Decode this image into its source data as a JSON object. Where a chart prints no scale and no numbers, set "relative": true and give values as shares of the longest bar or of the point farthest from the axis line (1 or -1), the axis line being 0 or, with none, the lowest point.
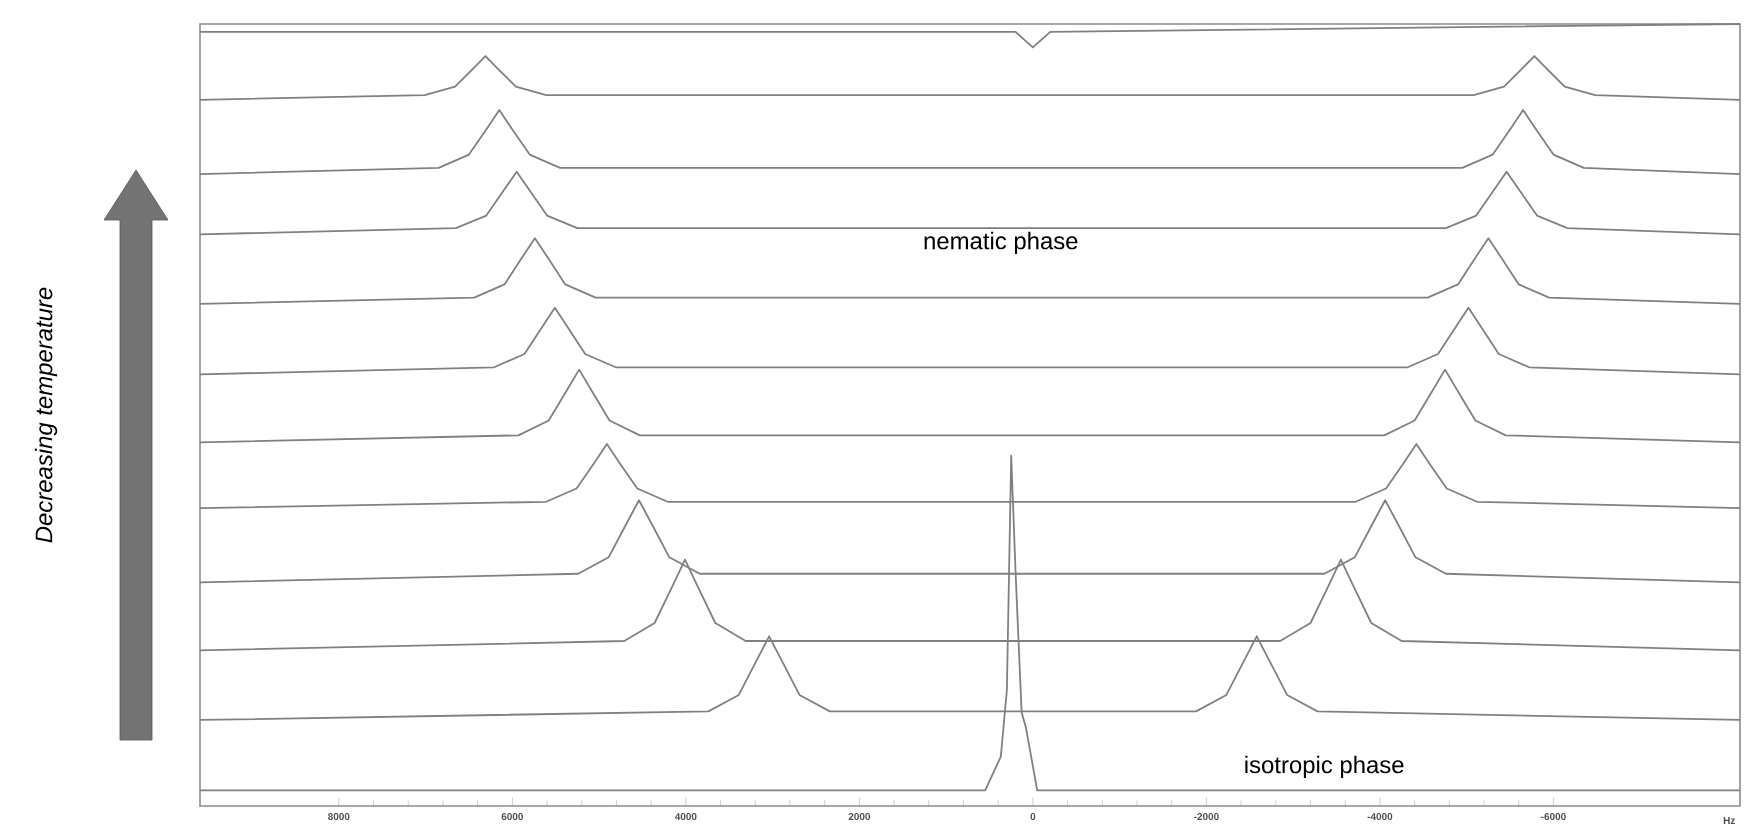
{
  "chart_data": {
    "type": "line",
    "relative": true,
    "xlim": [
      9600,
      -8150
    ],
    "xlabel": "Hz",
    "xticks": [
      8000,
      6000,
      4000,
      2000,
      0,
      -2000,
      -4000,
      -6000
    ],
    "annotations": [
      "nematic phase",
      "isotropic phase",
      "Decreasing temperature"
    ],
    "series": [
      {
        "color": "#808080",
        "x": [
          9600,
          2000,
          200,
          0,
          -200,
          -8150
        ],
        "values": [
          0.99,
          0.99,
          0.99,
          0.97,
          0.99,
          1.0
        ]
      },
      {
        "color": "#808080",
        "x": [
          9600,
          7010,
          6660,
          6460,
          6310,
          6160,
          5960,
          5610,
          -5080,
          -5430,
          -5630,
          -5780,
          -5930,
          -6130,
          -6480,
          -8150
        ],
        "values": [
          0.903,
          0.909,
          0.92,
          0.942,
          0.959,
          0.942,
          0.92,
          0.909,
          0.909,
          0.92,
          0.942,
          0.959,
          0.942,
          0.92,
          0.909,
          0.903
        ]
      },
      {
        "color": "#808080",
        "x": [
          9600,
          6850,
          6500,
          6300,
          6150,
          6000,
          5800,
          5450,
          -4950,
          -5300,
          -5500,
          -5650,
          -5800,
          -6000,
          -6350,
          -8150
        ],
        "values": [
          0.808,
          0.816,
          0.833,
          0.865,
          0.89,
          0.865,
          0.833,
          0.816,
          0.816,
          0.833,
          0.865,
          0.89,
          0.865,
          0.833,
          0.816,
          0.808
        ]
      },
      {
        "color": "#808080",
        "x": [
          9600,
          6650,
          6300,
          6100,
          5950,
          5800,
          5600,
          5250,
          -4760,
          -5110,
          -5310,
          -5460,
          -5610,
          -5810,
          -6160,
          -8150
        ],
        "values": [
          0.731,
          0.739,
          0.755,
          0.787,
          0.811,
          0.787,
          0.755,
          0.739,
          0.739,
          0.755,
          0.787,
          0.811,
          0.787,
          0.755,
          0.739,
          0.731
        ]
      },
      {
        "color": "#808080",
        "x": [
          9600,
          6440,
          6090,
          5890,
          5740,
          5590,
          5390,
          5040,
          -4550,
          -4900,
          -5100,
          -5250,
          -5400,
          -5600,
          -5950,
          -8150
        ],
        "values": [
          0.642,
          0.65,
          0.667,
          0.701,
          0.726,
          0.701,
          0.667,
          0.65,
          0.65,
          0.667,
          0.701,
          0.726,
          0.701,
          0.667,
          0.65,
          0.642
        ]
      },
      {
        "color": "#808080",
        "x": [
          9600,
          6210,
          5860,
          5660,
          5510,
          5360,
          5160,
          4810,
          -4320,
          -4670,
          -4870,
          -5020,
          -5170,
          -5370,
          -5720,
          -8150
        ],
        "values": [
          0.552,
          0.561,
          0.578,
          0.612,
          0.637,
          0.612,
          0.578,
          0.561,
          0.561,
          0.578,
          0.612,
          0.637,
          0.612,
          0.578,
          0.561,
          0.552
        ]
      },
      {
        "color": "#808080",
        "x": [
          9600,
          5930,
          5580,
          5380,
          5230,
          5080,
          4880,
          4530,
          -4050,
          -4400,
          -4600,
          -4750,
          -4900,
          -5100,
          -5450,
          -8150
        ],
        "values": [
          0.465,
          0.474,
          0.493,
          0.53,
          0.558,
          0.53,
          0.493,
          0.474,
          0.474,
          0.493,
          0.53,
          0.558,
          0.53,
          0.493,
          0.474,
          0.465
        ]
      },
      {
        "color": "#808080",
        "x": [
          9600,
          5610,
          5260,
          5060,
          4910,
          4760,
          4560,
          4210,
          -3720,
          -4070,
          -4270,
          -4420,
          -4570,
          -4770,
          -5120,
          -8150
        ],
        "values": [
          0.381,
          0.389,
          0.406,
          0.438,
          0.463,
          0.438,
          0.406,
          0.389,
          0.389,
          0.406,
          0.438,
          0.463,
          0.438,
          0.406,
          0.389,
          0.381
        ]
      },
      {
        "color": "#808080",
        "x": [
          9600,
          5240,
          4890,
          4690,
          4540,
          4390,
          4190,
          3840,
          -3360,
          -3710,
          -3910,
          -4060,
          -4210,
          -4410,
          -4760,
          -8150
        ],
        "values": [
          0.286,
          0.297,
          0.318,
          0.36,
          0.391,
          0.36,
          0.318,
          0.297,
          0.297,
          0.318,
          0.36,
          0.391,
          0.36,
          0.318,
          0.297,
          0.286
        ]
      },
      {
        "color": "#808080",
        "x": [
          9600,
          4710,
          4360,
          4160,
          4010,
          3860,
          3660,
          3310,
          -2850,
          -3200,
          -3400,
          -3550,
          -3700,
          -3900,
          -4250,
          -8150
        ],
        "values": [
          0.199,
          0.211,
          0.234,
          0.28,
          0.315,
          0.28,
          0.234,
          0.211,
          0.211,
          0.234,
          0.28,
          0.315,
          0.28,
          0.234,
          0.211,
          0.199
        ]
      },
      {
        "color": "#808080",
        "x": [
          9600,
          3740,
          3390,
          3190,
          3040,
          2890,
          2690,
          2340,
          -1880,
          -2230,
          -2430,
          -2580,
          -2730,
          -2930,
          -3280,
          -8150
        ],
        "values": [
          0.11,
          0.121,
          0.142,
          0.185,
          0.217,
          0.185,
          0.142,
          0.121,
          0.121,
          0.142,
          0.185,
          0.217,
          0.185,
          0.142,
          0.121,
          0.11
        ]
      },
      {
        "color": "#808080",
        "x": [
          9600,
          550,
          370,
          300,
          250,
          200,
          130,
          80,
          -50,
          -8150
        ],
        "values": [
          0.02,
          0.02,
          0.063,
          0.148,
          0.448,
          0.3,
          0.12,
          0.1,
          0.02,
          0.02
        ]
      }
    ]
  }
}
